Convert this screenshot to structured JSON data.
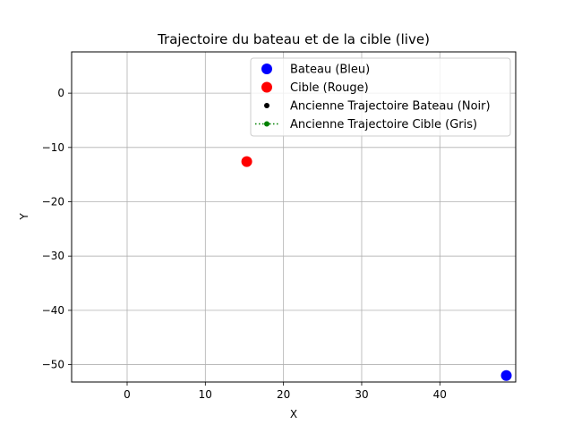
{
  "chart_data": {
    "type": "scatter",
    "title": "Trajectoire du bateau et de la cible (live)",
    "xlabel": "X",
    "ylabel": "Y",
    "xlim": [
      -7.1,
      49.7
    ],
    "ylim": [
      -53.2,
      7.6
    ],
    "xticks": [
      0,
      10,
      20,
      30,
      40
    ],
    "yticks": [
      0,
      -10,
      -20,
      -30,
      -40,
      -50
    ],
    "xtick_labels": [
      "0",
      "10",
      "20",
      "30",
      "40"
    ],
    "ytick_labels": [
      "0",
      "−10",
      "−20",
      "−30",
      "−40",
      "−50"
    ],
    "grid": true,
    "legend_position": "upper right",
    "series": [
      {
        "name": "Bateau (Bleu)",
        "color": "#0000ff",
        "marker": "circle-large",
        "points": [
          [
            48.5,
            -52
          ]
        ]
      },
      {
        "name": "Cible (Rouge)",
        "color": "#ff0000",
        "marker": "circle-large",
        "points": [
          [
            15.3,
            -12.6
          ]
        ]
      },
      {
        "name": "Ancienne Trajectoire Bateau (Noir)",
        "color": "#000000",
        "marker": "circle-small",
        "points": []
      },
      {
        "name": "Ancienne Trajectoire Cible (Gris)",
        "color": "#008000",
        "marker": "circle-small-dotted-line",
        "points": []
      }
    ]
  }
}
